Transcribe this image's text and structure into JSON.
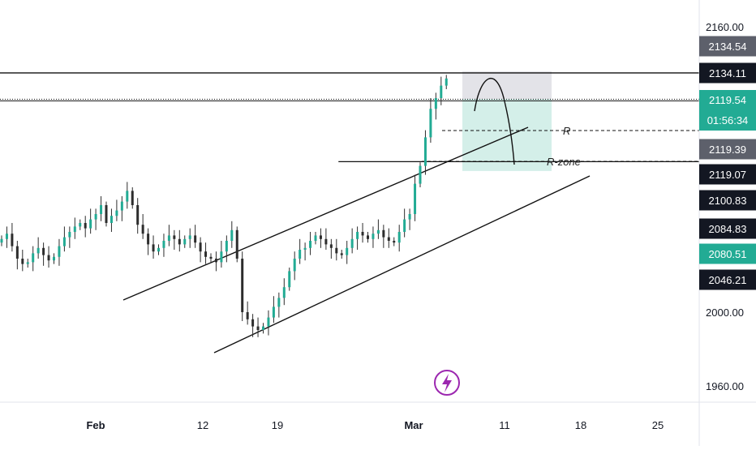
{
  "chart_data": {
    "type": "candlestick",
    "x_axis": {
      "ticks": [
        {
          "label": "Feb",
          "bold": true
        },
        {
          "label": "12",
          "bold": false
        },
        {
          "label": "19",
          "bold": false
        },
        {
          "label": "Mar",
          "bold": true
        },
        {
          "label": "11",
          "bold": false
        },
        {
          "label": "18",
          "bold": false
        },
        {
          "label": "25",
          "bold": false
        }
      ]
    },
    "y_axis": {
      "ticks": [
        "2160.00",
        "2000.00",
        "1960.00"
      ],
      "range": [
        1950,
        2165
      ]
    },
    "price_labels": [
      {
        "value": "2134.54",
        "style": "gray"
      },
      {
        "value": "2134.11",
        "style": "black"
      },
      {
        "value": "2119.54",
        "sub": "01:56:34",
        "style": "green"
      },
      {
        "value": "2119.39",
        "style": "gray"
      },
      {
        "value": "2119.07",
        "style": "black"
      },
      {
        "value": "2100.83",
        "style": "black"
      },
      {
        "value": "2084.83",
        "style": "black"
      },
      {
        "value": "2080.51",
        "style": "green"
      },
      {
        "value": "2046.21",
        "style": "black"
      }
    ],
    "horizontal_levels": [
      {
        "price": 2134.11,
        "style": "solid"
      },
      {
        "price": 2119.39,
        "style": "dotted"
      },
      {
        "price": 2084.83,
        "style": "solid",
        "from_date_index": 65
      }
    ],
    "annotations": [
      {
        "text": "R",
        "price": 2100.83
      },
      {
        "text": "R-zone",
        "price": 2084.83
      }
    ],
    "channel": {
      "upper": {
        "start_price": 2046,
        "end_price": 2110
      },
      "lower": {
        "start_price": 2002,
        "end_price": 2075
      }
    },
    "position_box": {
      "stop_zone": [
        2119.54,
        2134.54
      ],
      "target_zone": [
        2080.51,
        2119.54
      ]
    },
    "colors": {
      "up": "#26a69a",
      "down": "#ef5350",
      "candle": "#2d2d2d",
      "accent_green": "#22ab94",
      "brand_purple": "#9c27b0"
    },
    "series_close": [
      2041,
      2044,
      2037,
      2030,
      2027,
      2028,
      2033,
      2036,
      2032,
      2029,
      2031,
      2037,
      2042,
      2045,
      2048,
      2050,
      2047,
      2052,
      2055,
      2060,
      2050,
      2054,
      2057,
      2062,
      2068,
      2060,
      2049,
      2044,
      2038,
      2034,
      2036,
      2040,
      2043,
      2041,
      2038,
      2041,
      2043,
      2039,
      2034,
      2031,
      2030,
      2028,
      2034,
      2040,
      2046,
      2030,
      2000,
      1996,
      1992,
      1990,
      1992,
      1997,
      2003,
      2008,
      2014,
      2023,
      2030,
      2035,
      2036,
      2040,
      2043,
      2041,
      2038,
      2036,
      2033,
      2032,
      2036,
      2041,
      2045,
      2043,
      2041,
      2044,
      2046,
      2042,
      2040,
      2039,
      2045,
      2052,
      2055,
      2072,
      2082,
      2098,
      2114,
      2120,
      2127,
      2131
    ]
  }
}
